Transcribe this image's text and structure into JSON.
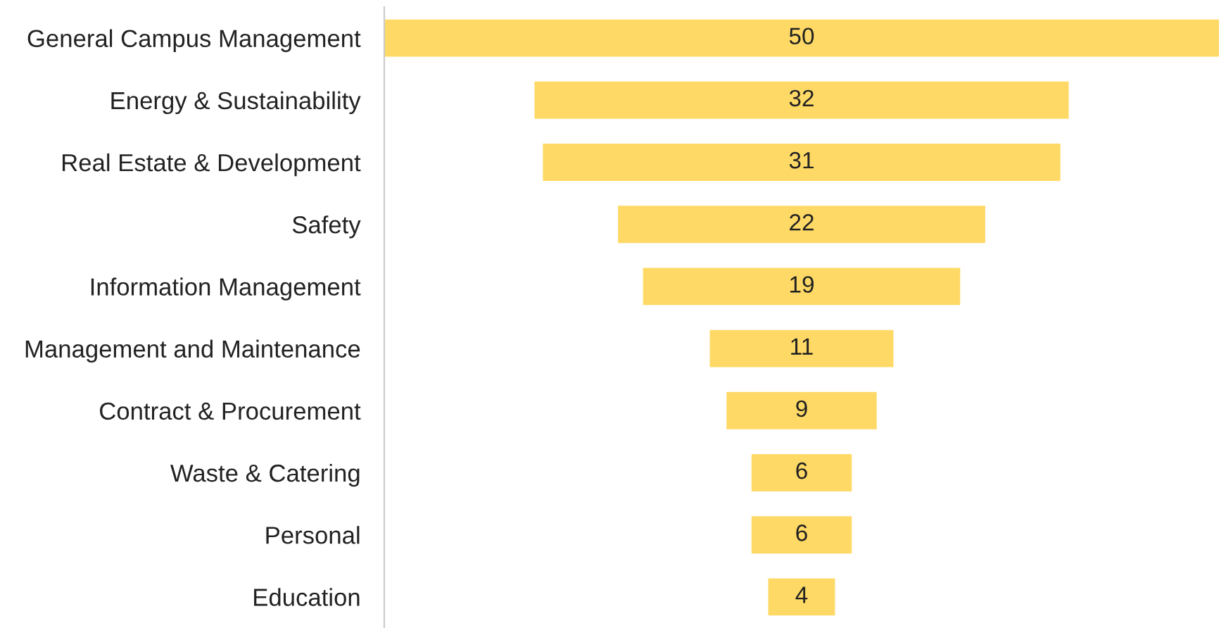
{
  "chart_data": {
    "type": "other",
    "categories": [
      "General Campus Management",
      "Energy & Sustainability",
      "Real Estate & Development",
      "Safety",
      "Information Management",
      "Management and Maintenance",
      "Contract & Procurement",
      "Waste & Catering",
      "Personal",
      "Education"
    ],
    "values": [
      50,
      32,
      31,
      22,
      19,
      11,
      9,
      6,
      6,
      4
    ],
    "color": "#ffd966",
    "data_labels": true
  }
}
